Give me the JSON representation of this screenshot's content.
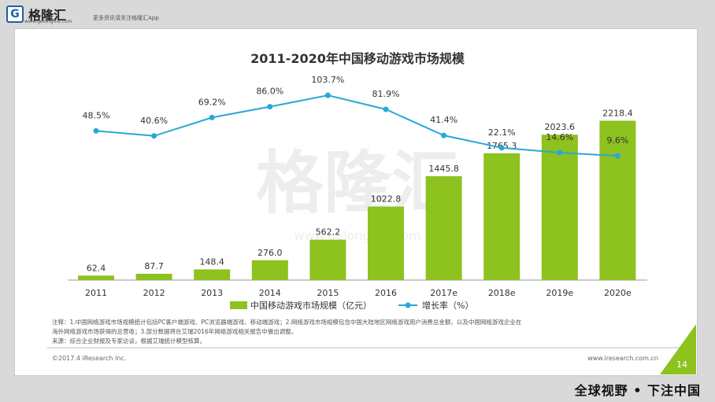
{
  "header": {
    "logo_text": "格隆汇",
    "logo_sub": "www.gelonghui.com",
    "tagline": "更多资讯请关注格隆汇App"
  },
  "slide": {
    "watermark": "格隆汇",
    "watermark_url": "www.gelonghui.com",
    "note_line1": "注释：1.中国网络游戏市场规模统计包括PC客户端游戏、PC浏览器端游戏、移动端游戏；2.网络游戏市场规模包含中国大陆地区网络游戏用户消费总金额，以及中国网络游戏企业在",
    "note_line2": "海外网络游戏市场获得的总营收；3.部分数据将在艾瑞2016年网络游戏相关报告中做出调整。",
    "note_line3": "来源：综合企业财报及专家访谈，根据艾瑞统计模型核算。",
    "copyright": "©2017.4 iResearch Inc.",
    "website": "www.iresearch.com.cn",
    "page_number": "14"
  },
  "footer": {
    "slogan": "全球视野 • 下注中国"
  },
  "colors": {
    "bar": "#8dc21f",
    "line": "#29a8d6",
    "corner": "#8dc21f"
  },
  "chart_data": {
    "type": "bar+line",
    "title": "2011-2020年中国移动游戏市场规模",
    "categories": [
      "2011",
      "2012",
      "2013",
      "2014",
      "2015",
      "2016",
      "2017e",
      "2018e",
      "2019e",
      "2020e"
    ],
    "series": [
      {
        "name": "中国移动游戏市场规模（亿元）",
        "type": "bar",
        "values": [
          62.4,
          87.7,
          148.4,
          276.0,
          562.2,
          1022.8,
          1445.8,
          1765.3,
          2023.6,
          2218.4
        ],
        "labels": [
          "62.4",
          "87.7",
          "148.4",
          "276.0",
          "562.2",
          "1022.8",
          "1445.8",
          "1765.3",
          "2023.6",
          "2218.4"
        ]
      },
      {
        "name": "增长率（%）",
        "type": "line",
        "values": [
          48.5,
          40.6,
          69.2,
          86.0,
          103.7,
          81.9,
          41.4,
          22.1,
          14.6,
          9.6
        ],
        "labels": [
          "48.5%",
          "40.6%",
          "69.2%",
          "86.0%",
          "103.7%",
          "81.9%",
          "41.4%",
          "22.1%",
          "14.6%",
          "9.6%"
        ]
      }
    ],
    "bar_ylim": [
      0,
      2300
    ],
    "line_ylim": [
      0,
      110
    ],
    "legend": [
      "中国移动游戏市场规模（亿元）",
      "增长率（%）"
    ]
  }
}
